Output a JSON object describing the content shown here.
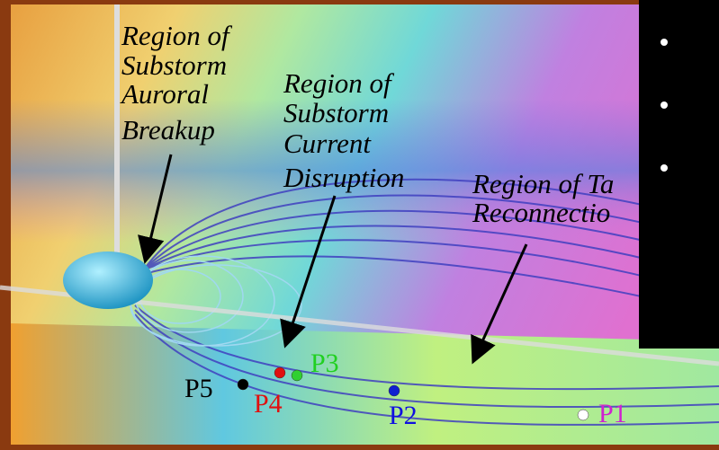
{
  "labels": [
    {
      "lines": [
        "Region of",
        "Substorm",
        "Auroral",
        "Breakup"
      ]
    },
    {
      "lines": [
        "Region of",
        "Substorm",
        "Current",
        "Disruption"
      ]
    },
    {
      "lines": [
        "Region of Ta",
        "Reconnectio"
      ]
    }
  ],
  "points": [
    {
      "label": "P1",
      "color": "#d020d0",
      "dot": "#ffffff"
    },
    {
      "label": "P2",
      "color": "#1010e0",
      "dot": "#1020d0"
    },
    {
      "label": "P3",
      "color": "#20d020",
      "dot": "#30d030"
    },
    {
      "label": "P4",
      "color": "#e01010",
      "dot": "#e01010"
    },
    {
      "label": "P5",
      "color": "#000000",
      "dot": "#000000"
    }
  ]
}
